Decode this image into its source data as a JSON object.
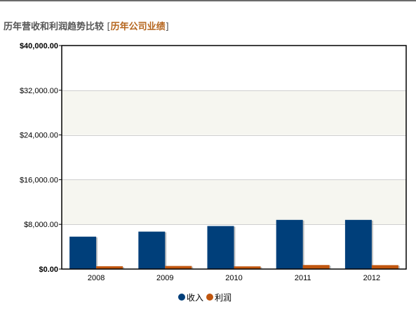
{
  "header": {
    "title": "历年营收和利润趋势比较",
    "bracket_open": "[",
    "link_label": "历年公司业绩",
    "bracket_close": "]"
  },
  "colors": {
    "revenue": "#003f7a",
    "profit": "#c0560f",
    "band_fill": "#f6f6f0",
    "grid": "#cfcfcf",
    "frame": "#000000"
  },
  "chart_data": {
    "type": "bar",
    "categories": [
      "2008",
      "2009",
      "2010",
      "2011",
      "2012"
    ],
    "series": [
      {
        "name": "收入",
        "values": [
          5800,
          6700,
          7700,
          8800,
          8800
        ]
      },
      {
        "name": "利润",
        "values": [
          500,
          550,
          480,
          720,
          700
        ]
      }
    ],
    "ylim": [
      0,
      40000
    ],
    "yticks": [
      0,
      8000,
      16000,
      24000,
      32000,
      40000
    ],
    "ytick_labels": [
      "$0.00",
      "$8,000.00",
      "$16,000.00",
      "$24,000.00",
      "$32,000.00",
      "$40,000.00"
    ],
    "grid": true,
    "legend_position": "bottom-center"
  }
}
